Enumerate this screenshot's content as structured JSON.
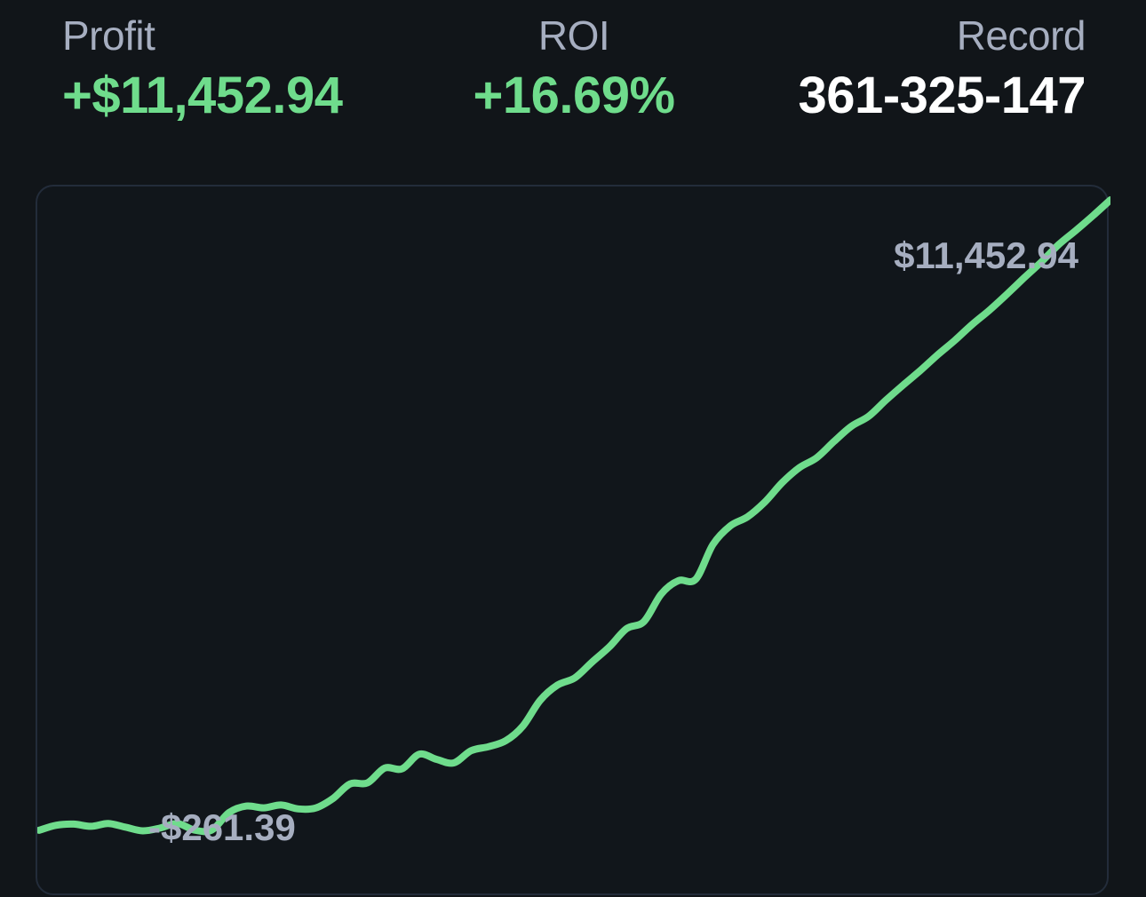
{
  "stats": {
    "profit": {
      "label": "Profit",
      "value": "+$11,452.94"
    },
    "roi": {
      "label": "ROI",
      "value": "+16.69%"
    },
    "record": {
      "label": "Record",
      "value": "361-325-147"
    }
  },
  "colors": {
    "background": "#111519",
    "positive": "#6fdc8c",
    "label": "#a6aec0",
    "record_value": "#ffffff",
    "panel_border": "#232c3a"
  },
  "chart_data": {
    "type": "line",
    "title": "",
    "xlabel": "",
    "ylabel": "",
    "max_label": "$11,452.94",
    "min_label": "-$261.39",
    "ylim": [
      -1500,
      11700
    ],
    "grid": false,
    "legend": "none",
    "series": [
      {
        "color": "#6fdc8c",
        "values": [
          -261.39,
          -166,
          -146,
          -186,
          -136,
          -203,
          -270,
          -220,
          -136,
          -257,
          -254,
          70,
          189,
          156,
          210,
          137,
          153,
          329,
          601,
          621,
          895,
          881,
          1153,
          1057,
          992,
          1218,
          1292,
          1402,
          1677,
          2155,
          2437,
          2570,
          2864,
          3147,
          3487,
          3616,
          4128,
          4378,
          4404,
          5050,
          5395,
          5564,
          5840,
          6197,
          6478,
          6661,
          6963,
          7244,
          7430,
          7728,
          8010,
          8282,
          8573,
          8843,
          9138,
          9404,
          9697,
          10002,
          10298,
          10619,
          10885,
          11161,
          11452.94
        ]
      }
    ]
  }
}
